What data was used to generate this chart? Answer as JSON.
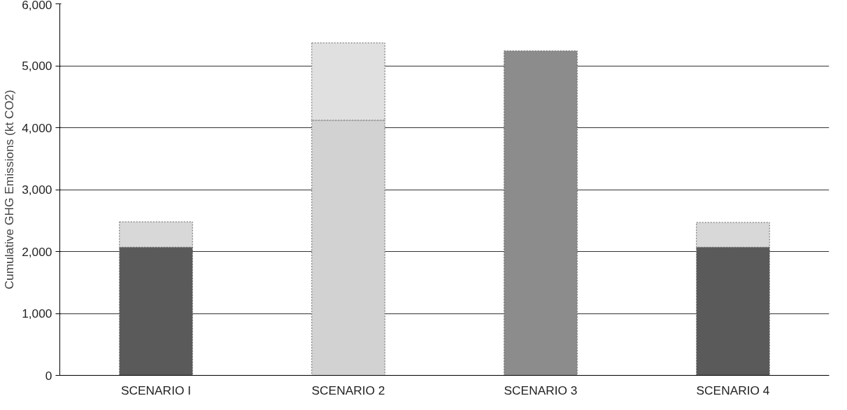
{
  "chart_data": {
    "type": "bar",
    "stacked": true,
    "ylabel": "Cumulative GHG Emissions (kt CO2)",
    "categories": [
      "SCENARIO I",
      "SCENARIO 2",
      "SCENARIO 3",
      "SCENARIO 4"
    ],
    "series": [
      {
        "colors": [
          "#5a5a5a",
          "#d2d2d2",
          "#8c8c8c",
          "#5a5a5a"
        ],
        "values": [
          2070,
          4120,
          5240,
          2070
        ]
      },
      {
        "colors": [
          "#d8d8d8",
          "#e0e0e0",
          "#d8d8d8",
          "#d8d8d8"
        ],
        "values": [
          410,
          1250,
          null,
          400
        ]
      }
    ],
    "ylim": [
      0,
      6000
    ],
    "yticks": [
      {
        "value": 0,
        "label": "0"
      },
      {
        "value": 1000,
        "label": "1,000"
      },
      {
        "value": 2000,
        "label": "2,000"
      },
      {
        "value": 3000,
        "label": "3,000"
      },
      {
        "value": 4000,
        "label": "4,000"
      },
      {
        "value": 5000,
        "label": "5,000"
      },
      {
        "value": 6000,
        "label": "6,000"
      }
    ],
    "grid": "y"
  }
}
